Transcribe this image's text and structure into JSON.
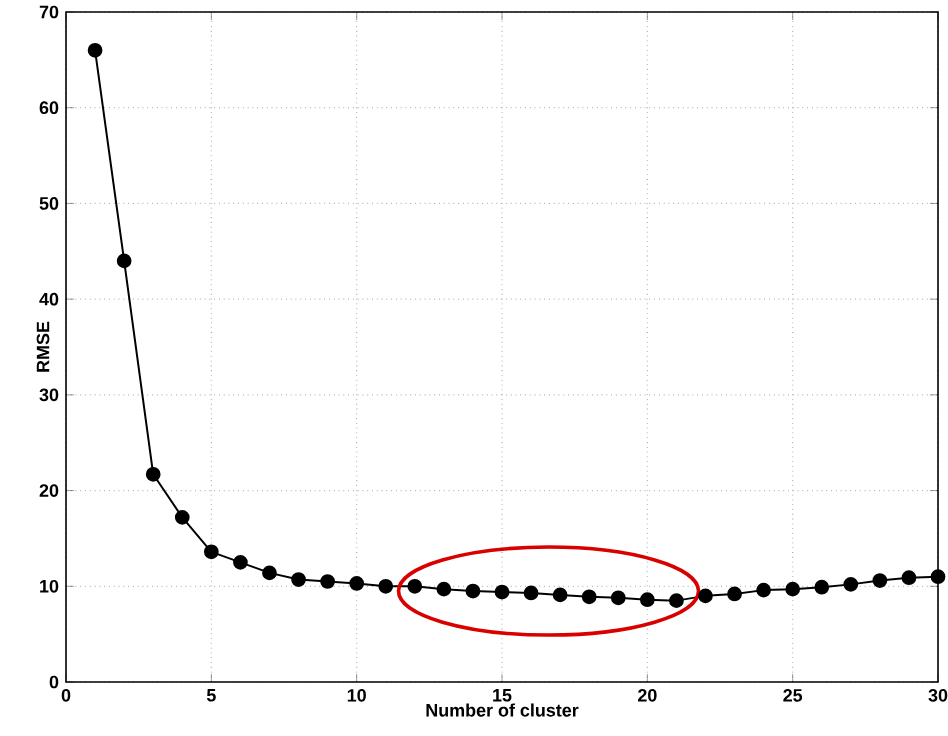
{
  "chart_data": {
    "type": "line",
    "xlabel": "Number of cluster",
    "ylabel": "RMSE",
    "x": [
      1,
      2,
      3,
      4,
      5,
      6,
      7,
      8,
      9,
      10,
      11,
      12,
      13,
      14,
      15,
      16,
      17,
      18,
      19,
      20,
      21,
      22,
      23,
      24,
      25,
      26,
      27,
      28,
      29,
      30
    ],
    "series": [
      {
        "color": "#000000",
        "values": [
          66,
          44,
          21.7,
          17.2,
          13.6,
          12.5,
          11.4,
          10.7,
          10.5,
          10.3,
          10.0,
          10.0,
          9.7,
          9.5,
          9.4,
          9.3,
          9.1,
          8.9,
          8.8,
          8.6,
          8.5,
          9.0,
          9.2,
          9.6,
          9.7,
          9.9,
          10.2,
          10.6,
          10.9,
          11.0
        ]
      }
    ],
    "xlim": [
      0,
      30
    ],
    "ylim": [
      0,
      70
    ],
    "xticks": [
      0,
      5,
      10,
      15,
      20,
      25,
      30
    ],
    "yticks": [
      0,
      10,
      20,
      30,
      40,
      50,
      60,
      70
    ],
    "grid": true,
    "marker": "circle",
    "line_style": "solid"
  }
}
